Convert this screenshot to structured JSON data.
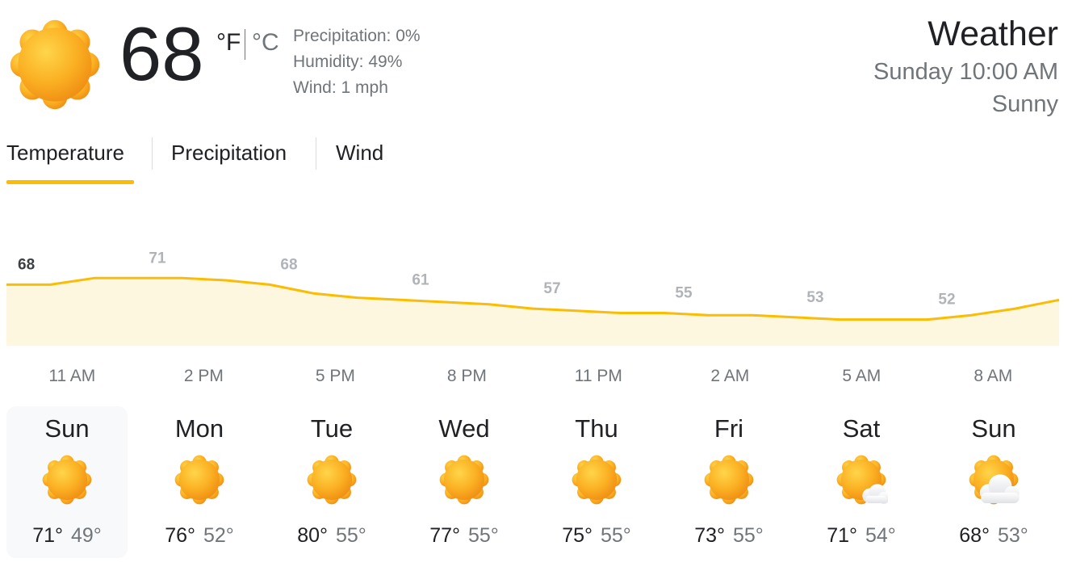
{
  "current": {
    "temperature": "68",
    "unit_f": "°F",
    "unit_c": "°C",
    "icon": "sunny-icon",
    "precipitation": "Precipitation: 0%",
    "humidity": "Humidity: 49%",
    "wind": "Wind: 1 mph"
  },
  "header": {
    "title": "Weather",
    "datetime": "Sunday 10:00 AM",
    "condition": "Sunny"
  },
  "tabs": [
    {
      "label": "Temperature",
      "selected": true
    },
    {
      "label": "Precipitation",
      "selected": false
    },
    {
      "label": "Wind",
      "selected": false
    }
  ],
  "colors": {
    "accent": "#fbbc04",
    "fill": "#fef7e0",
    "label_current": "#3c4043",
    "label_other": "#b0b3b8"
  },
  "chart_data": {
    "type": "area",
    "hours": [
      "10 AM",
      "11 AM",
      "12 PM",
      "1 PM",
      "2 PM",
      "3 PM",
      "4 PM",
      "5 PM",
      "6 PM",
      "7 PM",
      "8 PM",
      "9 PM",
      "10 PM",
      "11 PM",
      "12 AM",
      "1 AM",
      "2 AM",
      "3 AM",
      "4 AM",
      "5 AM",
      "6 AM",
      "7 AM",
      "8 AM",
      "9 AM",
      "10 AM"
    ],
    "values": [
      68,
      68,
      71,
      71,
      71,
      70,
      68,
      64,
      62,
      61,
      60,
      59,
      57,
      56,
      55,
      55,
      54,
      54,
      53,
      52,
      52,
      52,
      54,
      57,
      61
    ],
    "labeled_points": [
      {
        "hour_index": 0,
        "value": "68"
      },
      {
        "hour_index": 3,
        "value": "71"
      },
      {
        "hour_index": 6,
        "value": "68"
      },
      {
        "hour_index": 9,
        "value": "61"
      },
      {
        "hour_index": 12,
        "value": "57"
      },
      {
        "hour_index": 15,
        "value": "55"
      },
      {
        "hour_index": 18,
        "value": "53"
      },
      {
        "hour_index": 21,
        "value": "52"
      }
    ],
    "x_labels": [
      {
        "hour_index": 1,
        "label": "11 AM"
      },
      {
        "hour_index": 4,
        "label": "2 PM"
      },
      {
        "hour_index": 7,
        "label": "5 PM"
      },
      {
        "hour_index": 10,
        "label": "8 PM"
      },
      {
        "hour_index": 13,
        "label": "11 PM"
      },
      {
        "hour_index": 16,
        "label": "2 AM"
      },
      {
        "hour_index": 19,
        "label": "5 AM"
      },
      {
        "hour_index": 22,
        "label": "8 AM"
      }
    ],
    "ylim": [
      40,
      80
    ]
  },
  "forecast": [
    {
      "day": "Sun",
      "icon": "sunny-icon",
      "high": "71°",
      "low": "49°",
      "selected": true
    },
    {
      "day": "Mon",
      "icon": "sunny-icon",
      "high": "76°",
      "low": "52°",
      "selected": false
    },
    {
      "day": "Tue",
      "icon": "sunny-icon",
      "high": "80°",
      "low": "55°",
      "selected": false
    },
    {
      "day": "Wed",
      "icon": "sunny-icon",
      "high": "77°",
      "low": "55°",
      "selected": false
    },
    {
      "day": "Thu",
      "icon": "sunny-icon",
      "high": "75°",
      "low": "55°",
      "selected": false
    },
    {
      "day": "Fri",
      "icon": "sunny-icon",
      "high": "73°",
      "low": "55°",
      "selected": false
    },
    {
      "day": "Sat",
      "icon": "mostly-sunny-icon",
      "high": "71°",
      "low": "54°",
      "selected": false
    },
    {
      "day": "Sun",
      "icon": "partly-cloudy-icon",
      "high": "68°",
      "low": "53°",
      "selected": false
    }
  ]
}
